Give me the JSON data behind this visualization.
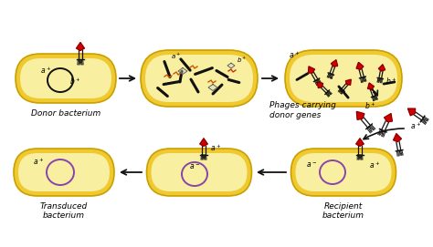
{
  "cell_fill": "#f0c830",
  "cell_edge": "#c8a000",
  "cell_inner": "#f8f0a0",
  "plasmid_black": "#111111",
  "plasmid_purple": "#8844aa",
  "phage_head_color": "#cc0000",
  "phage_body_color": "#111111",
  "arrow_color": "#111111",
  "label_donor": "Donor bacterium",
  "label_transduced": "Transduced\nbacterium",
  "label_recipient": "Recipient\nbacterium",
  "label_phages": "Phages carrying\ndonor genes",
  "font_size_label": 6.5,
  "font_size_gene": 5.5,
  "fig_w": 4.74,
  "fig_h": 2.71,
  "dpi": 100,
  "xlim": [
    0,
    474
  ],
  "ylim": [
    0,
    271
  ]
}
